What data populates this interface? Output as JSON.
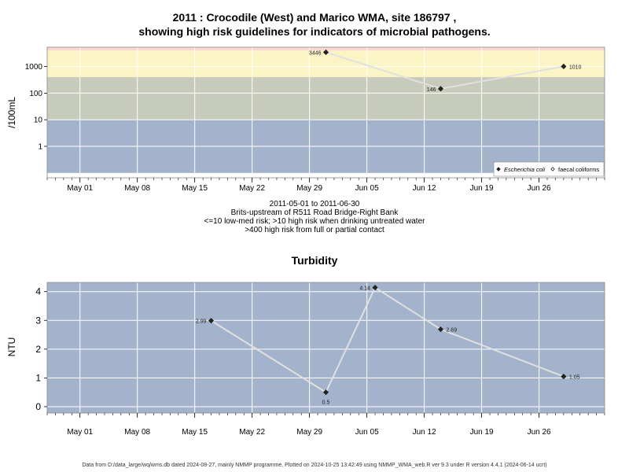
{
  "page": {
    "title_line1": "2011 : Crocodile (West) and Marico WMA, site 186797 ,",
    "title_line2": "showing high risk guidelines for indicators of microbial pathogens.",
    "subtitle_lines": [
      "2011-05-01 to 2011-06-30",
      "Brits-upstream of R511 Road Bridge-Right Bank",
      "<=10 low-med risk; >10 high risk when drinking untreated water",
      ">400 high risk from full or partial contact"
    ],
    "footer": "Data from D:/data_large/wq/wms.db dated 2024-08-27, mainly NMMP programme. Plotted on 2024-10-25 13:42:49 using NMMP_WMA_web.R ver 9.3 under R version 4.4.1 (2024-06-14 ucrt)"
  },
  "chart_data": [
    {
      "type": "line",
      "ylabel": "/100mL",
      "log_scale": true,
      "x_range": [
        "2011-04-27",
        "2011-07-04"
      ],
      "x_ticks": [
        {
          "date": "2011-05-01",
          "label": "May 01"
        },
        {
          "date": "2011-05-08",
          "label": "May 08"
        },
        {
          "date": "2011-05-15",
          "label": "May 15"
        },
        {
          "date": "2011-05-22",
          "label": "May 22"
        },
        {
          "date": "2011-05-29",
          "label": "May 29"
        },
        {
          "date": "2011-06-05",
          "label": "Jun 05"
        },
        {
          "date": "2011-06-12",
          "label": "Jun 12"
        },
        {
          "date": "2011-06-19",
          "label": "Jun 19"
        },
        {
          "date": "2011-06-26",
          "label": "Jun 26"
        }
      ],
      "y_ticks": [
        {
          "value": 1,
          "label": "1"
        },
        {
          "value": 10,
          "label": "10"
        },
        {
          "value": 100,
          "label": "100"
        },
        {
          "value": 1000,
          "label": "1000"
        }
      ],
      "risk_bands": [
        {
          "from": 0.1,
          "to": 10,
          "color": "#a3b3cc"
        },
        {
          "from": 10,
          "to": 400,
          "color": "#c7cbbc"
        },
        {
          "from": 400,
          "to": 4000,
          "color": "#fbf5c6"
        },
        {
          "from": 4000,
          "to": 6000,
          "color": "#f7d9d2"
        }
      ],
      "series": [
        {
          "name": "Escherichia coli",
          "marker": "diamond-filled",
          "points": [
            {
              "x": "2011-05-31",
              "y": 3446,
              "label": "3446"
            },
            {
              "x": "2011-06-14",
              "y": 146,
              "label": "146"
            },
            {
              "x": "2011-06-29",
              "y": 1010,
              "label": "1010"
            }
          ]
        },
        {
          "name": "faecal coliforms",
          "marker": "diamond-open",
          "points": []
        }
      ],
      "legend_position": "bottom-right",
      "grid": true
    },
    {
      "type": "line",
      "title": "Turbidity",
      "ylabel": "NTU",
      "x_range": [
        "2011-04-27",
        "2011-07-04"
      ],
      "y_range": [
        -0.22,
        4.32
      ],
      "x_ticks": [
        {
          "date": "2011-05-01",
          "label": "May 01"
        },
        {
          "date": "2011-05-08",
          "label": "May 08"
        },
        {
          "date": "2011-05-15",
          "label": "May 15"
        },
        {
          "date": "2011-05-22",
          "label": "May 22"
        },
        {
          "date": "2011-05-29",
          "label": "May 29"
        },
        {
          "date": "2011-06-05",
          "label": "Jun 05"
        },
        {
          "date": "2011-06-12",
          "label": "Jun 12"
        },
        {
          "date": "2011-06-19",
          "label": "Jun 19"
        },
        {
          "date": "2011-06-26",
          "label": "Jun 26"
        }
      ],
      "y_ticks": [
        {
          "value": 0,
          "label": "0"
        },
        {
          "value": 1,
          "label": "1"
        },
        {
          "value": 2,
          "label": "2"
        },
        {
          "value": 3,
          "label": "3"
        },
        {
          "value": 4,
          "label": "4"
        }
      ],
      "background_color": "#a3b3cc",
      "series": [
        {
          "points": [
            {
              "x": "2011-05-17",
              "y": 2.99,
              "label": "2.99"
            },
            {
              "x": "2011-05-31",
              "y": 0.5,
              "label": "0.5"
            },
            {
              "x": "2011-06-06",
              "y": 4.14,
              "label": "4.14"
            },
            {
              "x": "2011-06-14",
              "y": 2.69,
              "label": "2.69"
            },
            {
              "x": "2011-06-29",
              "y": 1.05,
              "label": "1.05"
            }
          ]
        }
      ],
      "grid": true
    }
  ]
}
